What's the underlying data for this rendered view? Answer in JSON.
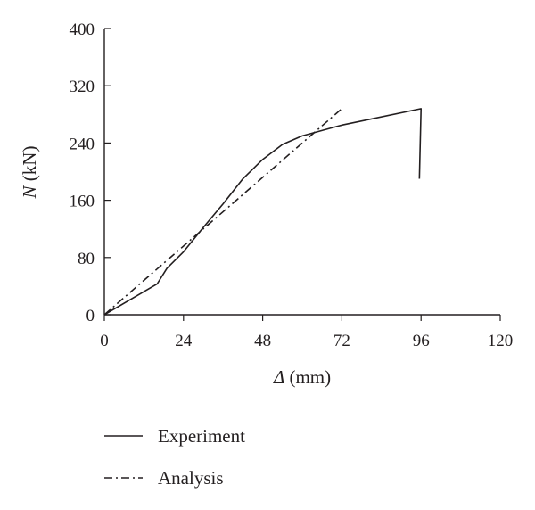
{
  "chart_data": {
    "type": "line",
    "xlabel": {
      "italic": "Δ",
      "rest": " (mm)"
    },
    "ylabel": {
      "italic": "N",
      "rest": " (kN)"
    },
    "xlim": [
      0,
      120
    ],
    "ylim": [
      0,
      400
    ],
    "xticks": [
      0,
      24,
      48,
      72,
      96,
      120
    ],
    "yticks": [
      0,
      80,
      160,
      240,
      320,
      400
    ],
    "grid": false,
    "legend_position": "bottom",
    "series": [
      {
        "name": "Experiment",
        "style": "solid",
        "x": [
          0,
          16,
          19,
          24,
          30,
          36,
          42,
          48,
          54,
          60,
          72,
          96,
          95.5
        ],
        "y": [
          0,
          43,
          65,
          88,
          122,
          155,
          190,
          217,
          238,
          250,
          265,
          288,
          190
        ]
      },
      {
        "name": "Analysis",
        "style": "dashdot",
        "x": [
          0,
          72
        ],
        "y": [
          0,
          288
        ]
      }
    ]
  }
}
